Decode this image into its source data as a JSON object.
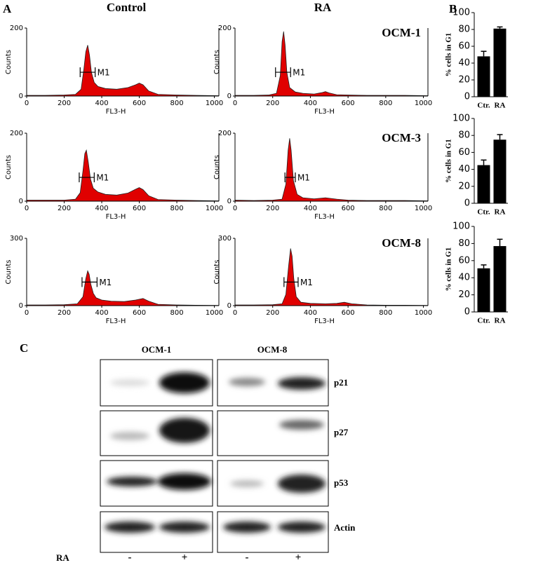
{
  "panel_labels": {
    "a": "A",
    "b": "B",
    "c": "C"
  },
  "column_titles": [
    "Control",
    "RA"
  ],
  "chart_data": [
    {
      "type": "area",
      "color": "#e00000",
      "x": [
        0,
        100,
        200,
        260,
        290,
        305,
        315,
        325,
        335,
        345,
        360,
        380,
        420,
        480,
        540,
        580,
        600,
        620,
        650,
        700,
        800,
        900,
        1023
      ],
      "y": [
        2,
        2,
        3,
        5,
        20,
        80,
        130,
        150,
        120,
        70,
        40,
        28,
        22,
        20,
        25,
        33,
        38,
        33,
        15,
        5,
        3,
        2,
        1
      ],
      "xlim": [
        0,
        1024
      ],
      "ylim": [
        0,
        200
      ],
      "xticks": [
        0,
        200,
        400,
        600,
        800,
        1000
      ],
      "yticks": [
        0,
        200
      ],
      "xlabel": "FL3-H",
      "ylabel": "Counts",
      "gate": [
        285,
        365
      ],
      "gate_label": "M1"
    },
    {
      "type": "area",
      "color": "#e00000",
      "x": [
        0,
        100,
        180,
        220,
        240,
        250,
        258,
        266,
        275,
        290,
        320,
        360,
        420,
        460,
        480,
        500,
        540,
        600,
        700,
        800,
        900,
        1023
      ],
      "y": [
        2,
        2,
        3,
        8,
        60,
        160,
        190,
        150,
        70,
        25,
        12,
        8,
        6,
        10,
        13,
        9,
        4,
        3,
        2,
        2,
        2,
        1
      ],
      "xlim": [
        0,
        1024
      ],
      "ylim": [
        0,
        200
      ],
      "xticks": [
        0,
        200,
        400,
        600,
        800,
        1000
      ],
      "yticks": [
        0,
        200
      ],
      "xlabel": "FL3-H",
      "ylabel": "Counts",
      "gate": [
        215,
        295
      ],
      "gate_label": "M1",
      "annotation": "OCM-1"
    },
    {
      "type": "area",
      "color": "#e00000",
      "x": [
        0,
        100,
        200,
        260,
        285,
        300,
        310,
        318,
        328,
        340,
        355,
        380,
        420,
        480,
        540,
        580,
        600,
        620,
        650,
        700,
        800,
        900,
        1023
      ],
      "y": [
        3,
        3,
        3,
        6,
        25,
        90,
        140,
        150,
        115,
        65,
        38,
        27,
        20,
        18,
        24,
        35,
        40,
        34,
        16,
        5,
        3,
        2,
        1
      ],
      "xlim": [
        0,
        1024
      ],
      "ylim": [
        0,
        200
      ],
      "xticks": [
        0,
        200,
        400,
        600,
        800,
        1000
      ],
      "yticks": [
        0,
        200
      ],
      "xlabel": "FL3-H",
      "ylabel": "Counts",
      "gate": [
        280,
        360
      ],
      "gate_label": "M1"
    },
    {
      "type": "area",
      "color": "#e00000",
      "x": [
        0,
        100,
        200,
        250,
        270,
        282,
        290,
        298,
        310,
        330,
        360,
        420,
        480,
        540,
        600,
        700,
        800,
        900,
        1023
      ],
      "y": [
        3,
        2,
        3,
        6,
        50,
        150,
        185,
        150,
        60,
        20,
        10,
        7,
        10,
        6,
        3,
        2,
        2,
        2,
        1
      ],
      "xlim": [
        0,
        1024
      ],
      "ylim": [
        0,
        200
      ],
      "xticks": [
        0,
        200,
        400,
        600,
        800,
        1000
      ],
      "yticks": [
        0,
        200
      ],
      "xlabel": "FL3-H",
      "ylabel": "Counts",
      "gate": [
        265,
        320
      ],
      "gate_label": "M1",
      "annotation": "OCM-3"
    },
    {
      "type": "area",
      "color": "#e00000",
      "x": [
        0,
        100,
        200,
        270,
        300,
        315,
        325,
        333,
        342,
        355,
        370,
        400,
        450,
        520,
        580,
        620,
        650,
        700,
        800,
        900,
        1023
      ],
      "y": [
        3,
        3,
        4,
        8,
        40,
        120,
        155,
        140,
        95,
        55,
        35,
        25,
        20,
        18,
        25,
        32,
        20,
        6,
        3,
        2,
        1
      ],
      "xlim": [
        0,
        1024
      ],
      "ylim": [
        0,
        300
      ],
      "xticks": [
        0,
        200,
        400,
        600,
        800,
        1000
      ],
      "yticks": [
        0,
        300
      ],
      "xlabel": "FL3-H",
      "ylabel": "Counts",
      "gate": [
        295,
        375
      ],
      "gate_label": "M1"
    },
    {
      "type": "area",
      "color": "#e00000",
      "x": [
        0,
        100,
        200,
        250,
        270,
        285,
        295,
        303,
        312,
        325,
        350,
        400,
        480,
        540,
        580,
        620,
        700,
        800,
        900,
        1023
      ],
      "y": [
        3,
        3,
        4,
        8,
        50,
        180,
        255,
        220,
        120,
        40,
        15,
        10,
        8,
        10,
        15,
        8,
        3,
        2,
        2,
        1
      ],
      "xlim": [
        0,
        1024
      ],
      "ylim": [
        0,
        300
      ],
      "xticks": [
        0,
        200,
        400,
        600,
        800,
        1000
      ],
      "yticks": [
        0,
        300
      ],
      "xlabel": "FL3-H",
      "ylabel": "Counts",
      "gate": [
        260,
        335
      ],
      "gate_label": "M1",
      "annotation": "OCM-8"
    },
    {
      "type": "bar",
      "color": "#000000",
      "categories": [
        "Ctr.",
        "RA"
      ],
      "values": [
        48,
        81
      ],
      "errors": [
        6,
        2
      ],
      "ylim": [
        0,
        100
      ],
      "yticks": [
        0,
        20,
        40,
        60,
        80,
        100
      ],
      "ylabel": "% cells in G1"
    },
    {
      "type": "bar",
      "color": "#000000",
      "categories": [
        "Ctr.",
        "RA"
      ],
      "values": [
        45,
        75
      ],
      "errors": [
        6,
        6
      ],
      "ylim": [
        0,
        100
      ],
      "yticks": [
        0,
        20,
        40,
        60,
        80,
        100
      ],
      "ylabel": "% cells in G1"
    },
    {
      "type": "bar",
      "color": "#000000",
      "categories": [
        "Ctr.",
        "RA"
      ],
      "values": [
        51,
        77
      ],
      "errors": [
        4,
        8
      ],
      "ylim": [
        0,
        100
      ],
      "yticks": [
        0,
        20,
        40,
        60,
        80,
        100
      ],
      "ylabel": "% cells in G1"
    }
  ],
  "blot": {
    "cell_lines": [
      "OCM-1",
      "OCM-8"
    ],
    "proteins": [
      "p21",
      "p27",
      "p53",
      "Actin"
    ],
    "treatment_label": "RA",
    "lanes": [
      "-",
      "+",
      "-",
      "+"
    ]
  }
}
